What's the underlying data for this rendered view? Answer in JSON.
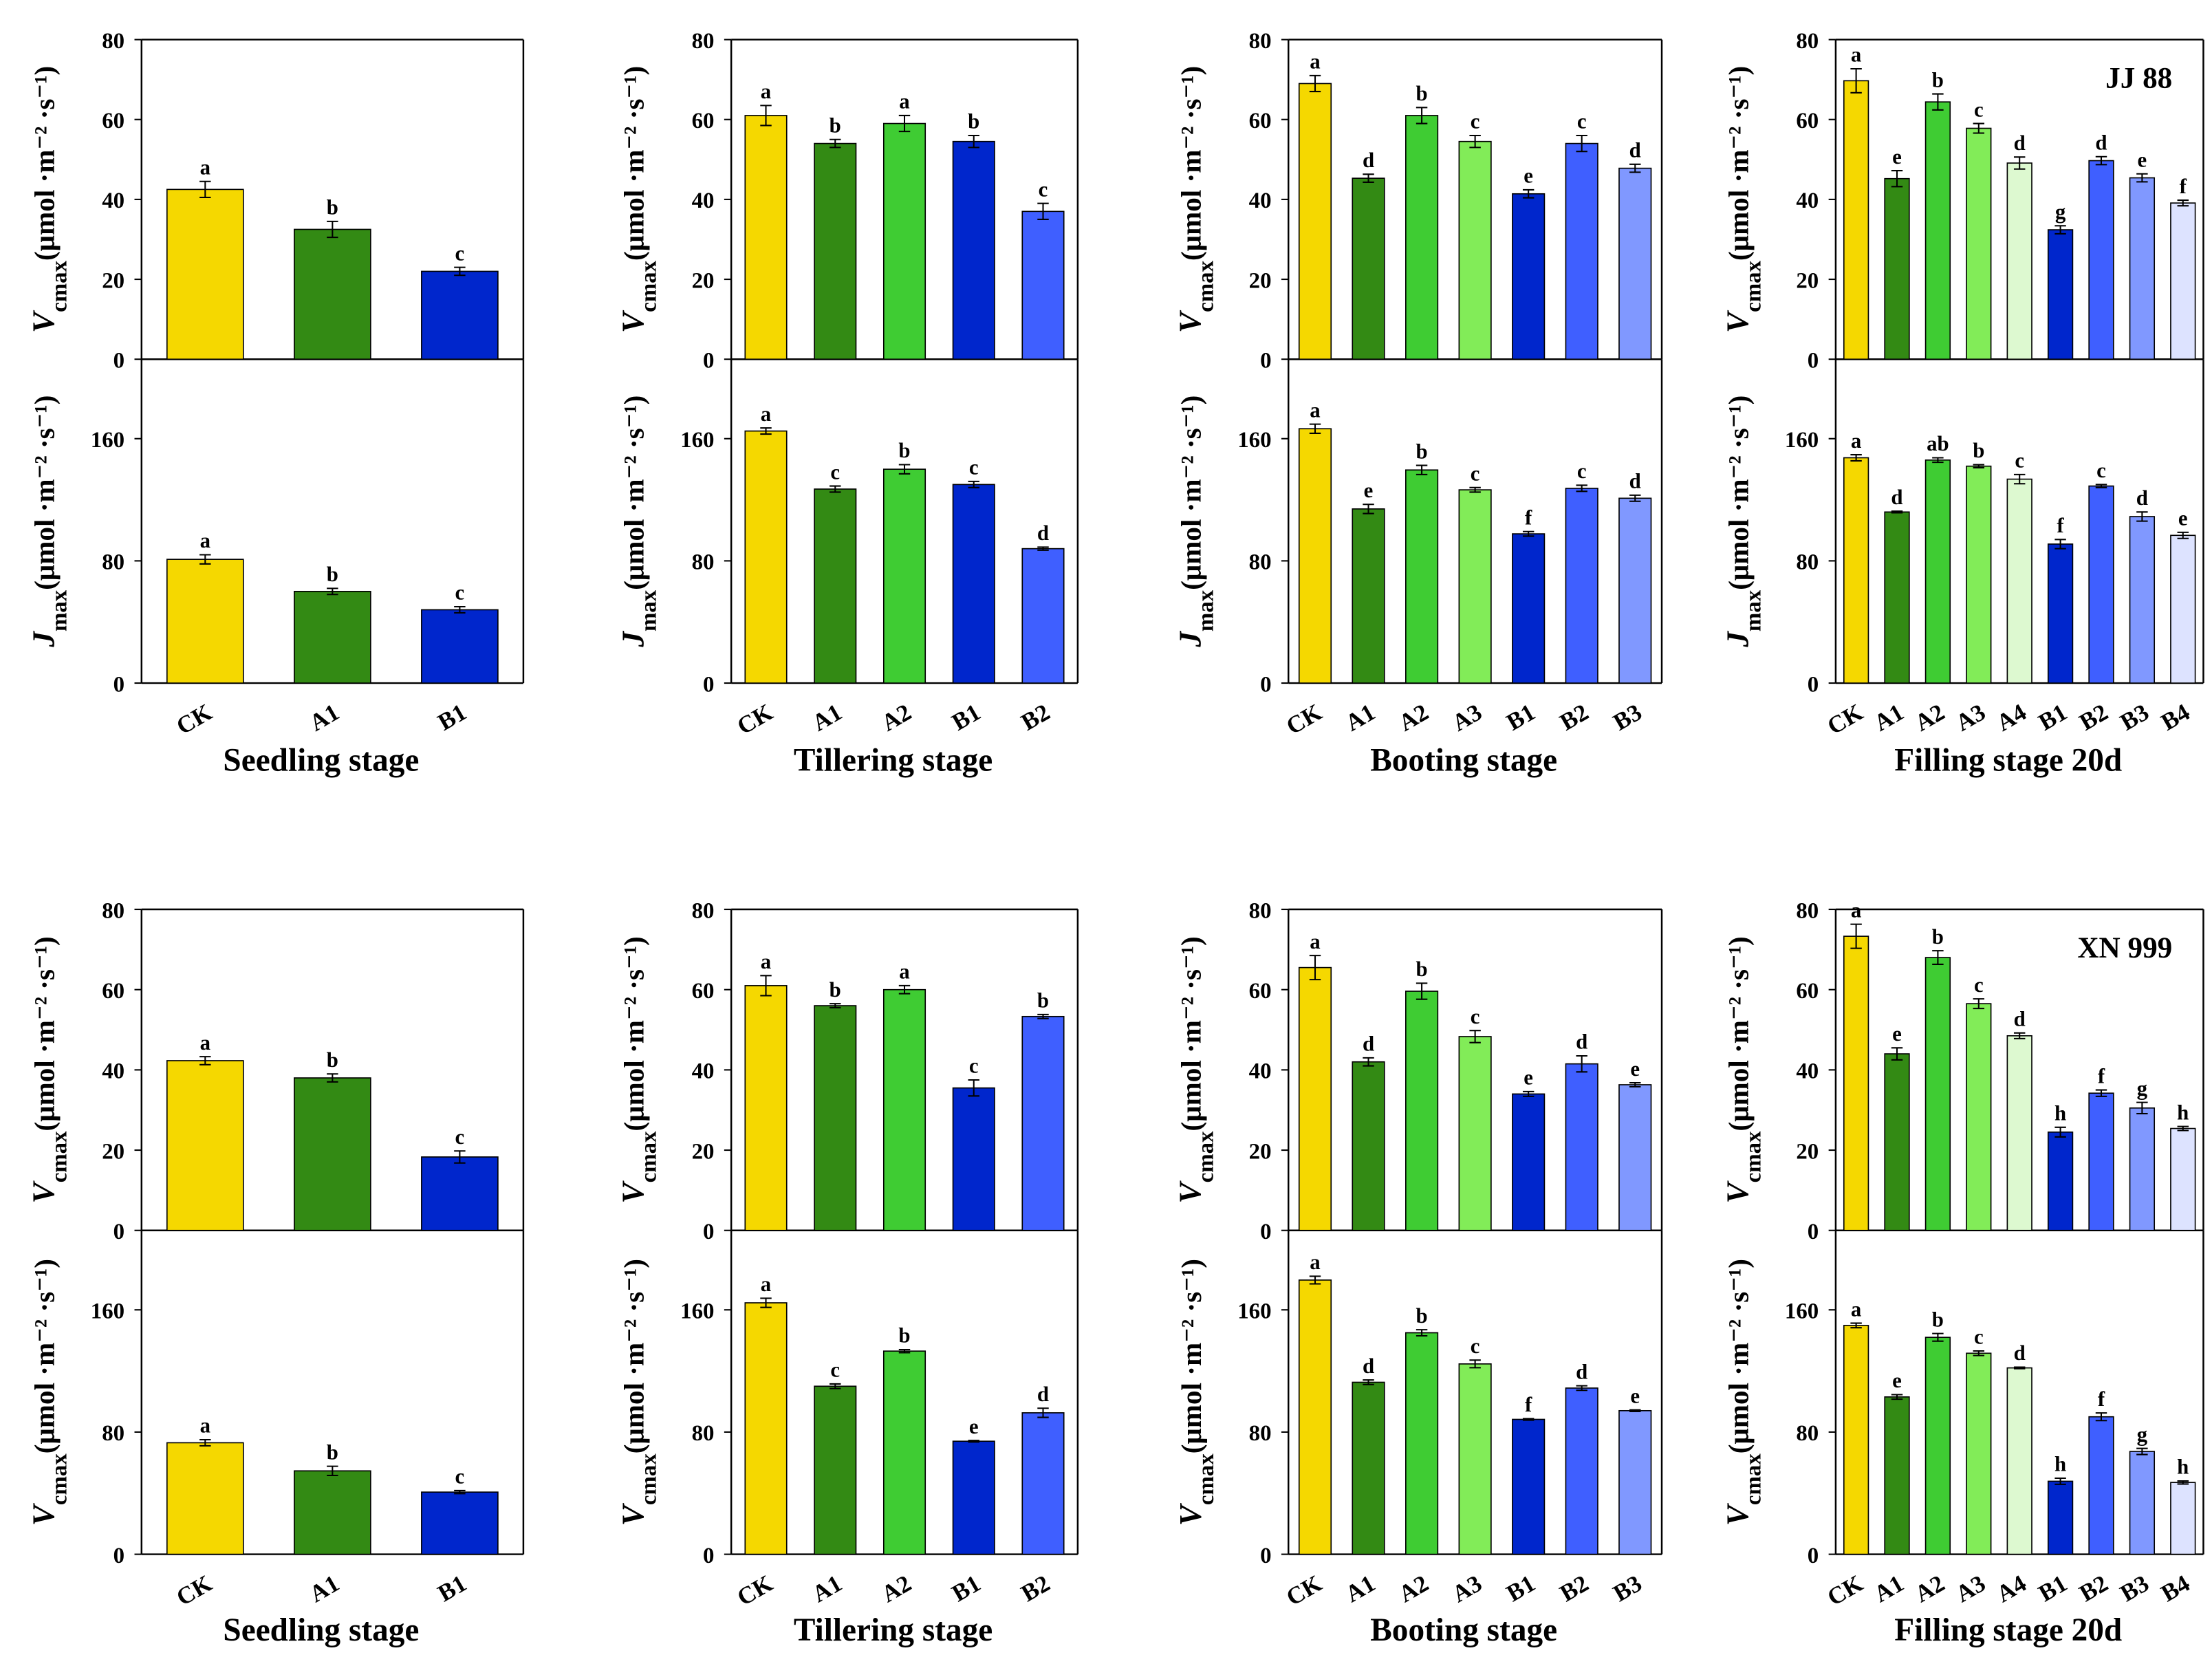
{
  "colors": {
    "CK": "#F5D800",
    "A1": "#338A14",
    "A2": "#3FCC33",
    "A3": "#82EC58",
    "A4": "#DDF9D0",
    "B1": "#0026CC",
    "B2": "#3F5FFF",
    "B3": "#8098FF",
    "B4": "#DDE3FF"
  },
  "chart_data": [
    {
      "type": "bar",
      "variety": "",
      "stage": "",
      "ylabel": {
        "symbol": "V",
        "sub": "cmax",
        "unit": "(μmol ·m⁻² ·s⁻¹)"
      },
      "categories": [
        "CK",
        "A1",
        "B1"
      ],
      "values": [
        42.5,
        32.5,
        22
      ],
      "err": [
        2,
        2,
        1
      ],
      "letters": [
        "a",
        "b",
        "c"
      ],
      "ylim": [
        0,
        80
      ],
      "yticks": [
        0,
        20,
        40,
        60,
        80
      ]
    },
    {
      "type": "bar",
      "variety": "",
      "stage": "Seedling stage",
      "ylabel": {
        "symbol": "J",
        "sub": "max",
        "unit": "(μmol ·m⁻² ·s⁻¹)"
      },
      "categories": [
        "CK",
        "A1",
        "B1"
      ],
      "values": [
        81,
        60,
        48
      ],
      "err": [
        3,
        2,
        2
      ],
      "letters": [
        "a",
        "b",
        "c"
      ],
      "ylim": [
        0,
        212
      ],
      "yticks": [
        0,
        80,
        160
      ]
    },
    {
      "type": "bar",
      "variety": "",
      "stage": "",
      "ylabel": {
        "symbol": "V",
        "sub": "cmax",
        "unit": "(μmol ·m⁻² ·s⁻¹)"
      },
      "categories": [
        "CK",
        "A1",
        "A2",
        "B1",
        "B2"
      ],
      "values": [
        61,
        54,
        59,
        54.5,
        37
      ],
      "err": [
        2.5,
        1,
        2,
        1.5,
        2
      ],
      "letters": [
        "a",
        "b",
        "a",
        "b",
        "c"
      ],
      "ylim": [
        0,
        80
      ],
      "yticks": [
        0,
        20,
        40,
        60,
        80
      ]
    },
    {
      "type": "bar",
      "variety": "",
      "stage": "Tillering stage",
      "ylabel": {
        "symbol": "J",
        "sub": "max",
        "unit": "(μmol ·m⁻² ·s⁻¹)"
      },
      "categories": [
        "CK",
        "A1",
        "A2",
        "B1",
        "B2"
      ],
      "values": [
        165,
        127,
        140,
        130,
        88
      ],
      "err": [
        2,
        2,
        3,
        2,
        1
      ],
      "letters": [
        "a",
        "c",
        "b",
        "c",
        "d"
      ],
      "ylim": [
        0,
        212
      ],
      "yticks": [
        0,
        80,
        160
      ]
    },
    {
      "type": "bar",
      "variety": "",
      "stage": "",
      "ylabel": {
        "symbol": "V",
        "sub": "cmax",
        "unit": "(μmol ·m⁻² ·s⁻¹)"
      },
      "categories": [
        "CK",
        "A1",
        "A2",
        "A3",
        "B1",
        "B2",
        "B3"
      ],
      "values": [
        69,
        45.3,
        61,
        54.5,
        41.4,
        54,
        47.8
      ],
      "err": [
        2,
        1,
        2,
        1.5,
        1,
        2,
        1
      ],
      "letters": [
        "a",
        "d",
        "b",
        "c",
        "e",
        "c",
        "d"
      ],
      "ylim": [
        0,
        80
      ],
      "yticks": [
        0,
        20,
        40,
        60,
        80
      ]
    },
    {
      "type": "bar",
      "variety": "",
      "stage": "Booting stage",
      "ylabel": {
        "symbol": "J",
        "sub": "max",
        "unit": "(μmol ·m⁻² ·s⁻¹)"
      },
      "categories": [
        "CK",
        "A1",
        "A2",
        "A3",
        "B1",
        "B2",
        "B3"
      ],
      "values": [
        166.5,
        114,
        139.5,
        126.5,
        97.7,
        127.5,
        121
      ],
      "err": [
        3,
        3,
        3,
        1.5,
        1.5,
        2,
        2
      ],
      "letters": [
        "a",
        "e",
        "b",
        "c",
        "f",
        "c",
        "d"
      ],
      "ylim": [
        0,
        212
      ],
      "yticks": [
        0,
        80,
        160
      ]
    },
    {
      "type": "bar",
      "variety": "JJ 88",
      "stage": "",
      "ylabel": {
        "symbol": "V",
        "sub": "cmax",
        "unit": "(μmol ·m⁻² ·s⁻¹)"
      },
      "categories": [
        "CK",
        "A1",
        "A2",
        "A3",
        "A4",
        "B1",
        "B2",
        "B3",
        "B4"
      ],
      "values": [
        69.7,
        45.2,
        64.4,
        57.8,
        49.1,
        32.4,
        49.7,
        45.4,
        39.1
      ],
      "err": [
        3,
        2,
        2,
        1.2,
        1.5,
        1,
        1,
        1,
        0.7
      ],
      "letters": [
        "a",
        "e",
        "b",
        "c",
        "d",
        "g",
        "d",
        "e",
        "f"
      ],
      "ylim": [
        0,
        80
      ],
      "yticks": [
        0,
        20,
        40,
        60,
        80
      ]
    },
    {
      "type": "bar",
      "variety": "",
      "stage": "Filling stage 20d",
      "ylabel": {
        "symbol": "J",
        "sub": "max",
        "unit": "(μmol ·m⁻² ·s⁻¹)"
      },
      "categories": [
        "CK",
        "A1",
        "A2",
        "A3",
        "A4",
        "B1",
        "B2",
        "B3",
        "B4"
      ],
      "values": [
        147.5,
        112,
        146,
        142,
        133.5,
        91,
        129,
        109,
        96.7
      ],
      "err": [
        2,
        0.5,
        1.5,
        1,
        3,
        3,
        1,
        3,
        2
      ],
      "letters": [
        "a",
        "d",
        "ab",
        "b",
        "c",
        "f",
        "c",
        "d",
        "e"
      ],
      "ylim": [
        0,
        212
      ],
      "yticks": [
        0,
        80,
        160
      ]
    },
    {
      "type": "bar",
      "variety": "",
      "stage": "",
      "ylabel": {
        "symbol": "V",
        "sub": "cmax",
        "unit": "(μmol ·m⁻² ·s⁻¹)"
      },
      "categories": [
        "CK",
        "A1",
        "B1"
      ],
      "values": [
        42.3,
        38,
        18.3
      ],
      "err": [
        1,
        1,
        1.5
      ],
      "letters": [
        "a",
        "b",
        "c"
      ],
      "ylim": [
        0,
        80
      ],
      "yticks": [
        0,
        20,
        40,
        60,
        80
      ]
    },
    {
      "type": "bar",
      "variety": "",
      "stage": "Seedling stage",
      "ylabel": {
        "symbol": "V",
        "sub": "cmax",
        "unit": "(μmol ·m⁻² ·s⁻¹)"
      },
      "categories": [
        "CK",
        "A1",
        "B1"
      ],
      "values": [
        73,
        54.6,
        40.7
      ],
      "err": [
        2,
        3,
        1
      ],
      "letters": [
        "a",
        "b",
        "c"
      ],
      "ylim": [
        0,
        212
      ],
      "yticks": [
        0,
        80,
        160
      ]
    },
    {
      "type": "bar",
      "variety": "",
      "stage": "",
      "ylabel": {
        "symbol": "V",
        "sub": "cmax",
        "unit": "(μmol ·m⁻² ·s⁻¹)"
      },
      "categories": [
        "CK",
        "A1",
        "A2",
        "B1",
        "B2"
      ],
      "values": [
        61,
        56,
        60,
        35.5,
        53.3
      ],
      "err": [
        2.5,
        0.5,
        1,
        2,
        0.5
      ],
      "letters": [
        "a",
        "b",
        "a",
        "c",
        "b"
      ],
      "ylim": [
        0,
        80
      ],
      "yticks": [
        0,
        20,
        40,
        60,
        80
      ]
    },
    {
      "type": "bar",
      "variety": "",
      "stage": "Tillering stage",
      "ylabel": {
        "symbol": "V",
        "sub": "cmax",
        "unit": "(μmol ·m⁻² ·s⁻¹)"
      },
      "categories": [
        "CK",
        "A1",
        "A2",
        "B1",
        "B2"
      ],
      "values": [
        164.6,
        110,
        133,
        74,
        92.6
      ],
      "err": [
        3,
        1.5,
        1,
        0.5,
        3
      ],
      "letters": [
        "a",
        "c",
        "b",
        "e",
        "d"
      ],
      "ylim": [
        0,
        212
      ],
      "yticks": [
        0,
        80,
        160
      ]
    },
    {
      "type": "bar",
      "variety": "",
      "stage": "",
      "ylabel": {
        "symbol": "V",
        "sub": "cmax",
        "unit": "(μmol ·m⁻² ·s⁻¹)"
      },
      "categories": [
        "CK",
        "A1",
        "A2",
        "A3",
        "B1",
        "B2",
        "B3"
      ],
      "values": [
        65.5,
        42,
        59.6,
        48.3,
        34,
        41.5,
        36.3
      ],
      "err": [
        3,
        1,
        2,
        1.5,
        0.6,
        2,
        0.5
      ],
      "letters": [
        "a",
        "d",
        "b",
        "c",
        "e",
        "d",
        "e"
      ],
      "ylim": [
        0,
        80
      ],
      "yticks": [
        0,
        20,
        40,
        60,
        80
      ]
    },
    {
      "type": "bar",
      "variety": "",
      "stage": "Booting stage",
      "ylabel": {
        "symbol": "V",
        "sub": "cmax",
        "unit": "(μmol ·m⁻² ·s⁻¹)"
      },
      "categories": [
        "CK",
        "A1",
        "A2",
        "A3",
        "B1",
        "B2",
        "B3"
      ],
      "values": [
        179.5,
        112.6,
        145,
        124.6,
        88.3,
        108.8,
        94
      ],
      "err": [
        2.5,
        1.5,
        2,
        2.5,
        0.5,
        1.5,
        0.5
      ],
      "letters": [
        "a",
        "d",
        "b",
        "c",
        "f",
        "d",
        "e"
      ],
      "ylim": [
        0,
        212
      ],
      "yticks": [
        0,
        80,
        160
      ]
    },
    {
      "type": "bar",
      "variety": "XN 999",
      "stage": "",
      "ylabel": {
        "symbol": "V",
        "sub": "cmax",
        "unit": "(μmol ·m⁻² ·s⁻¹)"
      },
      "categories": [
        "CK",
        "A1",
        "A2",
        "A3",
        "A4",
        "B1",
        "B2",
        "B3",
        "B4"
      ],
      "values": [
        73.3,
        44,
        68,
        56.5,
        48.5,
        24.5,
        34.2,
        30.5,
        25.4
      ],
      "err": [
        3,
        1.5,
        1.7,
        1.2,
        0.7,
        1.2,
        0.8,
        1.4,
        0.5
      ],
      "letters": [
        "a",
        "e",
        "b",
        "c",
        "d",
        "h",
        "f",
        "g",
        "h"
      ],
      "ylim": [
        0,
        80
      ],
      "yticks": [
        0,
        20,
        40,
        60,
        80
      ]
    },
    {
      "type": "bar",
      "variety": "",
      "stage": "Filling stage 20d",
      "ylabel": {
        "symbol": "V",
        "sub": "cmax",
        "unit": "(μmol ·m⁻² ·s⁻¹)"
      },
      "categories": [
        "CK",
        "A1",
        "A2",
        "A3",
        "A4",
        "B1",
        "B2",
        "B3",
        "B4"
      ],
      "values": [
        149.8,
        103,
        142,
        131.6,
        122,
        47.8,
        90,
        67.3,
        47
      ],
      "err": [
        1.5,
        1.5,
        2.5,
        1.5,
        0.5,
        2,
        2.5,
        2,
        1
      ],
      "letters": [
        "a",
        "e",
        "b",
        "c",
        "d",
        "h",
        "f",
        "g",
        "h"
      ],
      "ylim": [
        0,
        212
      ],
      "yticks": [
        0,
        80,
        160
      ]
    }
  ]
}
